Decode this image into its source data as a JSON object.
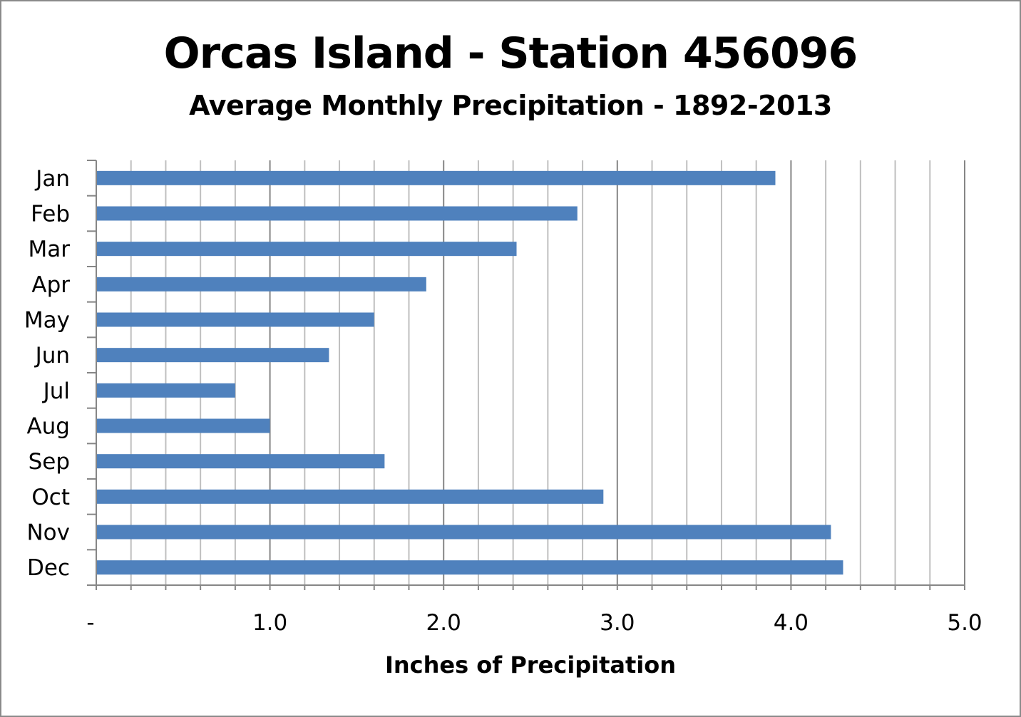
{
  "chart_data": {
    "type": "bar",
    "orientation": "horizontal",
    "title": "Orcas Island - Station 456096",
    "subtitle": "Average Monthly Precipitation - 1892-2013",
    "xlabel": "Inches of Precipitation",
    "ylabel": "",
    "categories": [
      "Jan",
      "Feb",
      "Mar",
      "Apr",
      "May",
      "Jun",
      "Jul",
      "Aug",
      "Sep",
      "Oct",
      "Nov",
      "Dec"
    ],
    "values": [
      3.91,
      2.77,
      2.42,
      1.9,
      1.6,
      1.34,
      0.8,
      1.0,
      1.66,
      2.92,
      4.23,
      4.3
    ],
    "xlim": [
      0,
      5
    ],
    "x_ticks": [
      0,
      1,
      2,
      3,
      4,
      5
    ],
    "x_tick_labels": [
      "-",
      "1.0",
      "2.0",
      "3.0",
      "4.0",
      "5.0"
    ],
    "grid": "vertical major and minor",
    "legend": "none",
    "bar_color": "#4f81bd",
    "major_grid_color": "#868686",
    "minor_grid_color": "#bfbfbf"
  }
}
